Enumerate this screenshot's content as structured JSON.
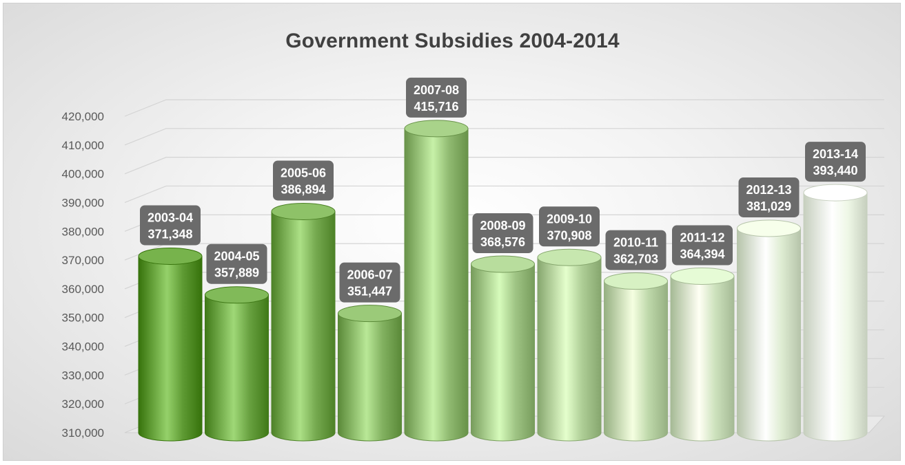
{
  "chart_data": {
    "type": "bar",
    "title": "Government Subsidies 2004-2014",
    "xlabel": "",
    "ylabel": "",
    "categories": [
      "2003-04",
      "2004-05",
      "2005-06",
      "2006-07",
      "2007-08",
      "2008-09",
      "2009-10",
      "2010-11",
      "2011-12",
      "2012-13",
      "2013-14"
    ],
    "values": [
      371348,
      357889,
      386894,
      351447,
      415716,
      368576,
      370908,
      362703,
      364394,
      381029,
      393440
    ],
    "data_labels": [
      [
        "2003-04",
        "371,348"
      ],
      [
        "2004-05",
        "357,889"
      ],
      [
        "2005-06",
        "386,894"
      ],
      [
        "2006-07",
        "351,447"
      ],
      [
        "2007-08",
        "415,716"
      ],
      [
        "2008-09",
        "368,576"
      ],
      [
        "2009-10",
        "370,908"
      ],
      [
        "2010-11",
        "362,703"
      ],
      [
        "2011-12",
        "364,394"
      ],
      [
        "2012-13",
        "381,029"
      ],
      [
        "2013-14",
        "393,440"
      ]
    ],
    "ylim": [
      310000,
      420000
    ],
    "yticks": [
      310000,
      320000,
      330000,
      340000,
      350000,
      360000,
      370000,
      380000,
      390000,
      400000,
      410000,
      420000
    ],
    "ytick_labels": [
      "310,000",
      "320,000",
      "330,000",
      "340,000",
      "350,000",
      "360,000",
      "370,000",
      "380,000",
      "390,000",
      "400,000",
      "410,000",
      "420,000"
    ],
    "grid": true,
    "legend": "none",
    "bar_shape": "cylinder",
    "colors": {
      "bar_dark": "#5e9a33",
      "bar_light": "#eef7e6",
      "label_box": "#6b6b6b",
      "label_text": "#ffffff",
      "gridline": "#d4d4d4",
      "tick_text": "#595959",
      "title_text": "#404040"
    }
  }
}
